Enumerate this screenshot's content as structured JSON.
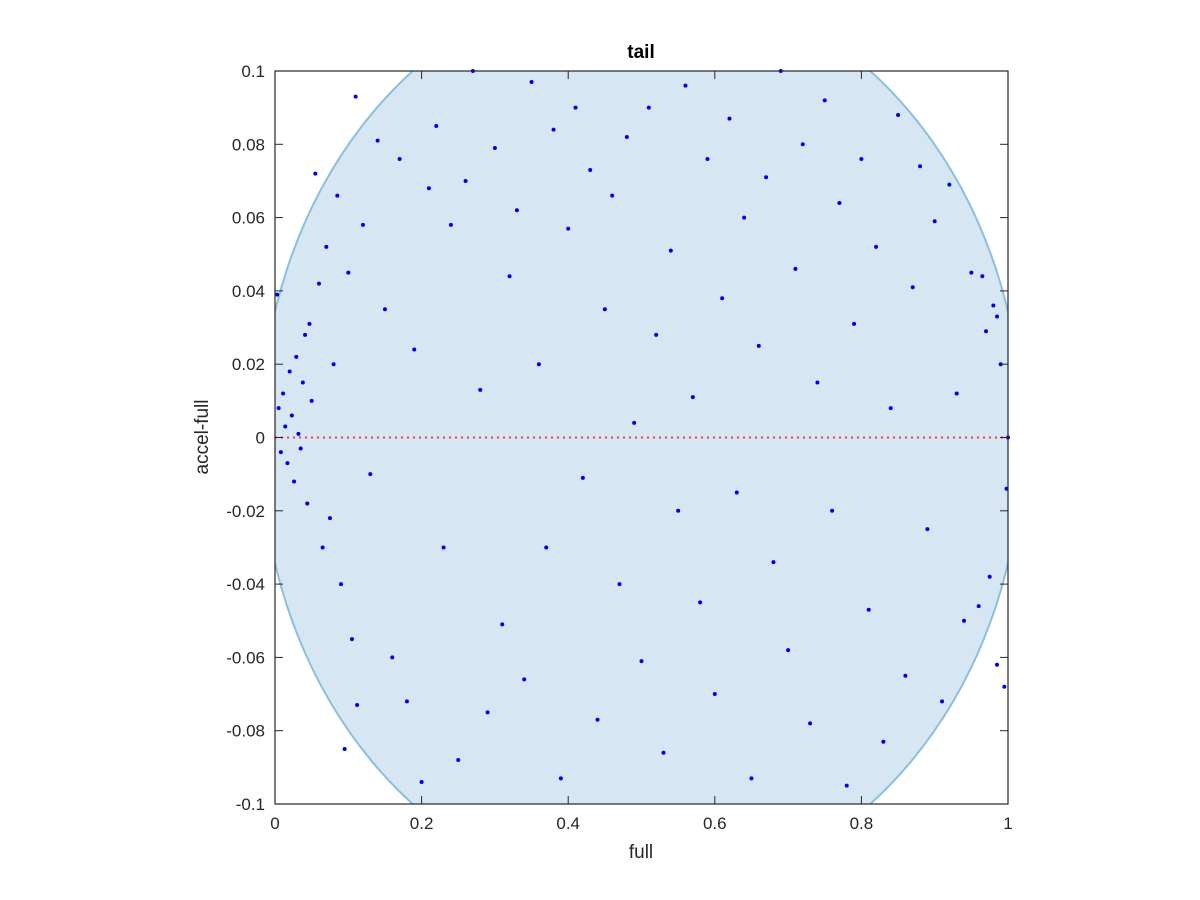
{
  "chart_data": {
    "type": "scatter",
    "title": "tail",
    "xlabel": "full",
    "ylabel": "accel-full",
    "xlim": [
      0,
      1
    ],
    "ylim": [
      -0.1,
      0.1
    ],
    "xticks": [
      0,
      0.2,
      0.4,
      0.6,
      0.8,
      1
    ],
    "xtick_labels": [
      "0",
      "0.2",
      "0.4",
      "0.6",
      "0.8",
      "1"
    ],
    "yticks": [
      -0.1,
      -0.08,
      -0.06,
      -0.04,
      -0.02,
      0,
      0.02,
      0.04,
      0.06,
      0.08,
      0.1
    ],
    "ytick_labels": [
      "-0.1",
      "-0.08",
      "-0.06",
      "-0.04",
      "-0.02",
      "0",
      "0.02",
      "0.04",
      "0.06",
      "0.08",
      "0.1"
    ],
    "grid": false,
    "colors": {
      "points": "#0000ee",
      "region_fill": "#d6e7f3",
      "region_edge": "#8bbfe0",
      "zero_line": "#ff3b3b"
    },
    "region": {
      "shape": "ellipse",
      "center": [
        0.5,
        0
      ],
      "semi_axis_x": 0.52,
      "semi_axis_y": 0.125
    },
    "zero_line": {
      "y": 0,
      "style": "dotted"
    },
    "series": [
      {
        "points": [
          [
            0.003,
            0.039
          ],
          [
            0.005,
            0.008
          ],
          [
            0.008,
            -0.004
          ],
          [
            0.011,
            0.012
          ],
          [
            0.014,
            0.003
          ],
          [
            0.017,
            -0.007
          ],
          [
            0.02,
            0.018
          ],
          [
            0.023,
            0.006
          ],
          [
            0.026,
            -0.012
          ],
          [
            0.029,
            0.022
          ],
          [
            0.032,
            0.001
          ],
          [
            0.035,
            -0.003
          ],
          [
            0.038,
            0.015
          ],
          [
            0.041,
            0.028
          ],
          [
            0.044,
            -0.018
          ],
          [
            0.047,
            0.031
          ],
          [
            0.05,
            0.01
          ],
          [
            0.055,
            0.072
          ],
          [
            0.06,
            0.042
          ],
          [
            0.065,
            -0.03
          ],
          [
            0.07,
            0.052
          ],
          [
            0.075,
            -0.022
          ],
          [
            0.08,
            0.02
          ],
          [
            0.085,
            0.066
          ],
          [
            0.09,
            -0.04
          ],
          [
            0.095,
            -0.085
          ],
          [
            0.1,
            0.045
          ],
          [
            0.105,
            -0.055
          ],
          [
            0.11,
            0.093
          ],
          [
            0.112,
            -0.073
          ],
          [
            0.12,
            0.058
          ],
          [
            0.13,
            -0.01
          ],
          [
            0.14,
            0.081
          ],
          [
            0.15,
            0.035
          ],
          [
            0.16,
            -0.06
          ],
          [
            0.17,
            0.076
          ],
          [
            0.18,
            -0.072
          ],
          [
            0.19,
            0.024
          ],
          [
            0.2,
            -0.094
          ],
          [
            0.21,
            0.068
          ],
          [
            0.22,
            0.085
          ],
          [
            0.23,
            -0.03
          ],
          [
            0.24,
            0.058
          ],
          [
            0.25,
            -0.088
          ],
          [
            0.26,
            0.07
          ],
          [
            0.27,
            0.1
          ],
          [
            0.28,
            0.013
          ],
          [
            0.29,
            -0.075
          ],
          [
            0.3,
            0.079
          ],
          [
            0.31,
            -0.051
          ],
          [
            0.32,
            0.044
          ],
          [
            0.33,
            0.062
          ],
          [
            0.34,
            -0.066
          ],
          [
            0.35,
            0.097
          ],
          [
            0.36,
            0.02
          ],
          [
            0.37,
            -0.03
          ],
          [
            0.38,
            0.084
          ],
          [
            0.39,
            -0.093
          ],
          [
            0.4,
            0.057
          ],
          [
            0.41,
            0.09
          ],
          [
            0.42,
            -0.011
          ],
          [
            0.43,
            0.073
          ],
          [
            0.44,
            -0.077
          ],
          [
            0.45,
            0.035
          ],
          [
            0.46,
            0.066
          ],
          [
            0.47,
            -0.04
          ],
          [
            0.48,
            0.082
          ],
          [
            0.49,
            0.004
          ],
          [
            0.5,
            -0.061
          ],
          [
            0.51,
            0.09
          ],
          [
            0.52,
            0.028
          ],
          [
            0.53,
            -0.086
          ],
          [
            0.54,
            0.051
          ],
          [
            0.55,
            -0.02
          ],
          [
            0.56,
            0.096
          ],
          [
            0.57,
            0.011
          ],
          [
            0.58,
            -0.045
          ],
          [
            0.59,
            0.076
          ],
          [
            0.6,
            -0.07
          ],
          [
            0.61,
            0.038
          ],
          [
            0.62,
            0.087
          ],
          [
            0.63,
            -0.015
          ],
          [
            0.64,
            0.06
          ],
          [
            0.65,
            -0.093
          ],
          [
            0.66,
            0.025
          ],
          [
            0.67,
            0.071
          ],
          [
            0.68,
            -0.034
          ],
          [
            0.69,
            0.1
          ],
          [
            0.7,
            -0.058
          ],
          [
            0.71,
            0.046
          ],
          [
            0.72,
            0.08
          ],
          [
            0.73,
            -0.078
          ],
          [
            0.74,
            0.015
          ],
          [
            0.75,
            0.092
          ],
          [
            0.76,
            -0.02
          ],
          [
            0.77,
            0.064
          ],
          [
            0.78,
            -0.095
          ],
          [
            0.79,
            0.031
          ],
          [
            0.8,
            0.076
          ],
          [
            0.81,
            -0.047
          ],
          [
            0.82,
            0.052
          ],
          [
            0.83,
            -0.083
          ],
          [
            0.84,
            0.008
          ],
          [
            0.85,
            0.088
          ],
          [
            0.86,
            -0.065
          ],
          [
            0.87,
            0.041
          ],
          [
            0.88,
            0.074
          ],
          [
            0.89,
            -0.025
          ],
          [
            0.9,
            0.059
          ],
          [
            0.91,
            -0.072
          ],
          [
            0.92,
            0.069
          ],
          [
            0.93,
            0.012
          ],
          [
            0.94,
            -0.05
          ],
          [
            0.95,
            0.045
          ],
          [
            0.96,
            -0.046
          ],
          [
            0.97,
            0.029
          ],
          [
            0.975,
            -0.038
          ],
          [
            0.98,
            0.036
          ],
          [
            0.985,
            -0.062
          ],
          [
            0.99,
            0.02
          ],
          [
            0.995,
            -0.068
          ],
          [
            1.0,
            0.0
          ],
          [
            0.998,
            -0.014
          ],
          [
            0.985,
            0.033
          ],
          [
            0.965,
            0.044
          ]
        ]
      }
    ]
  }
}
